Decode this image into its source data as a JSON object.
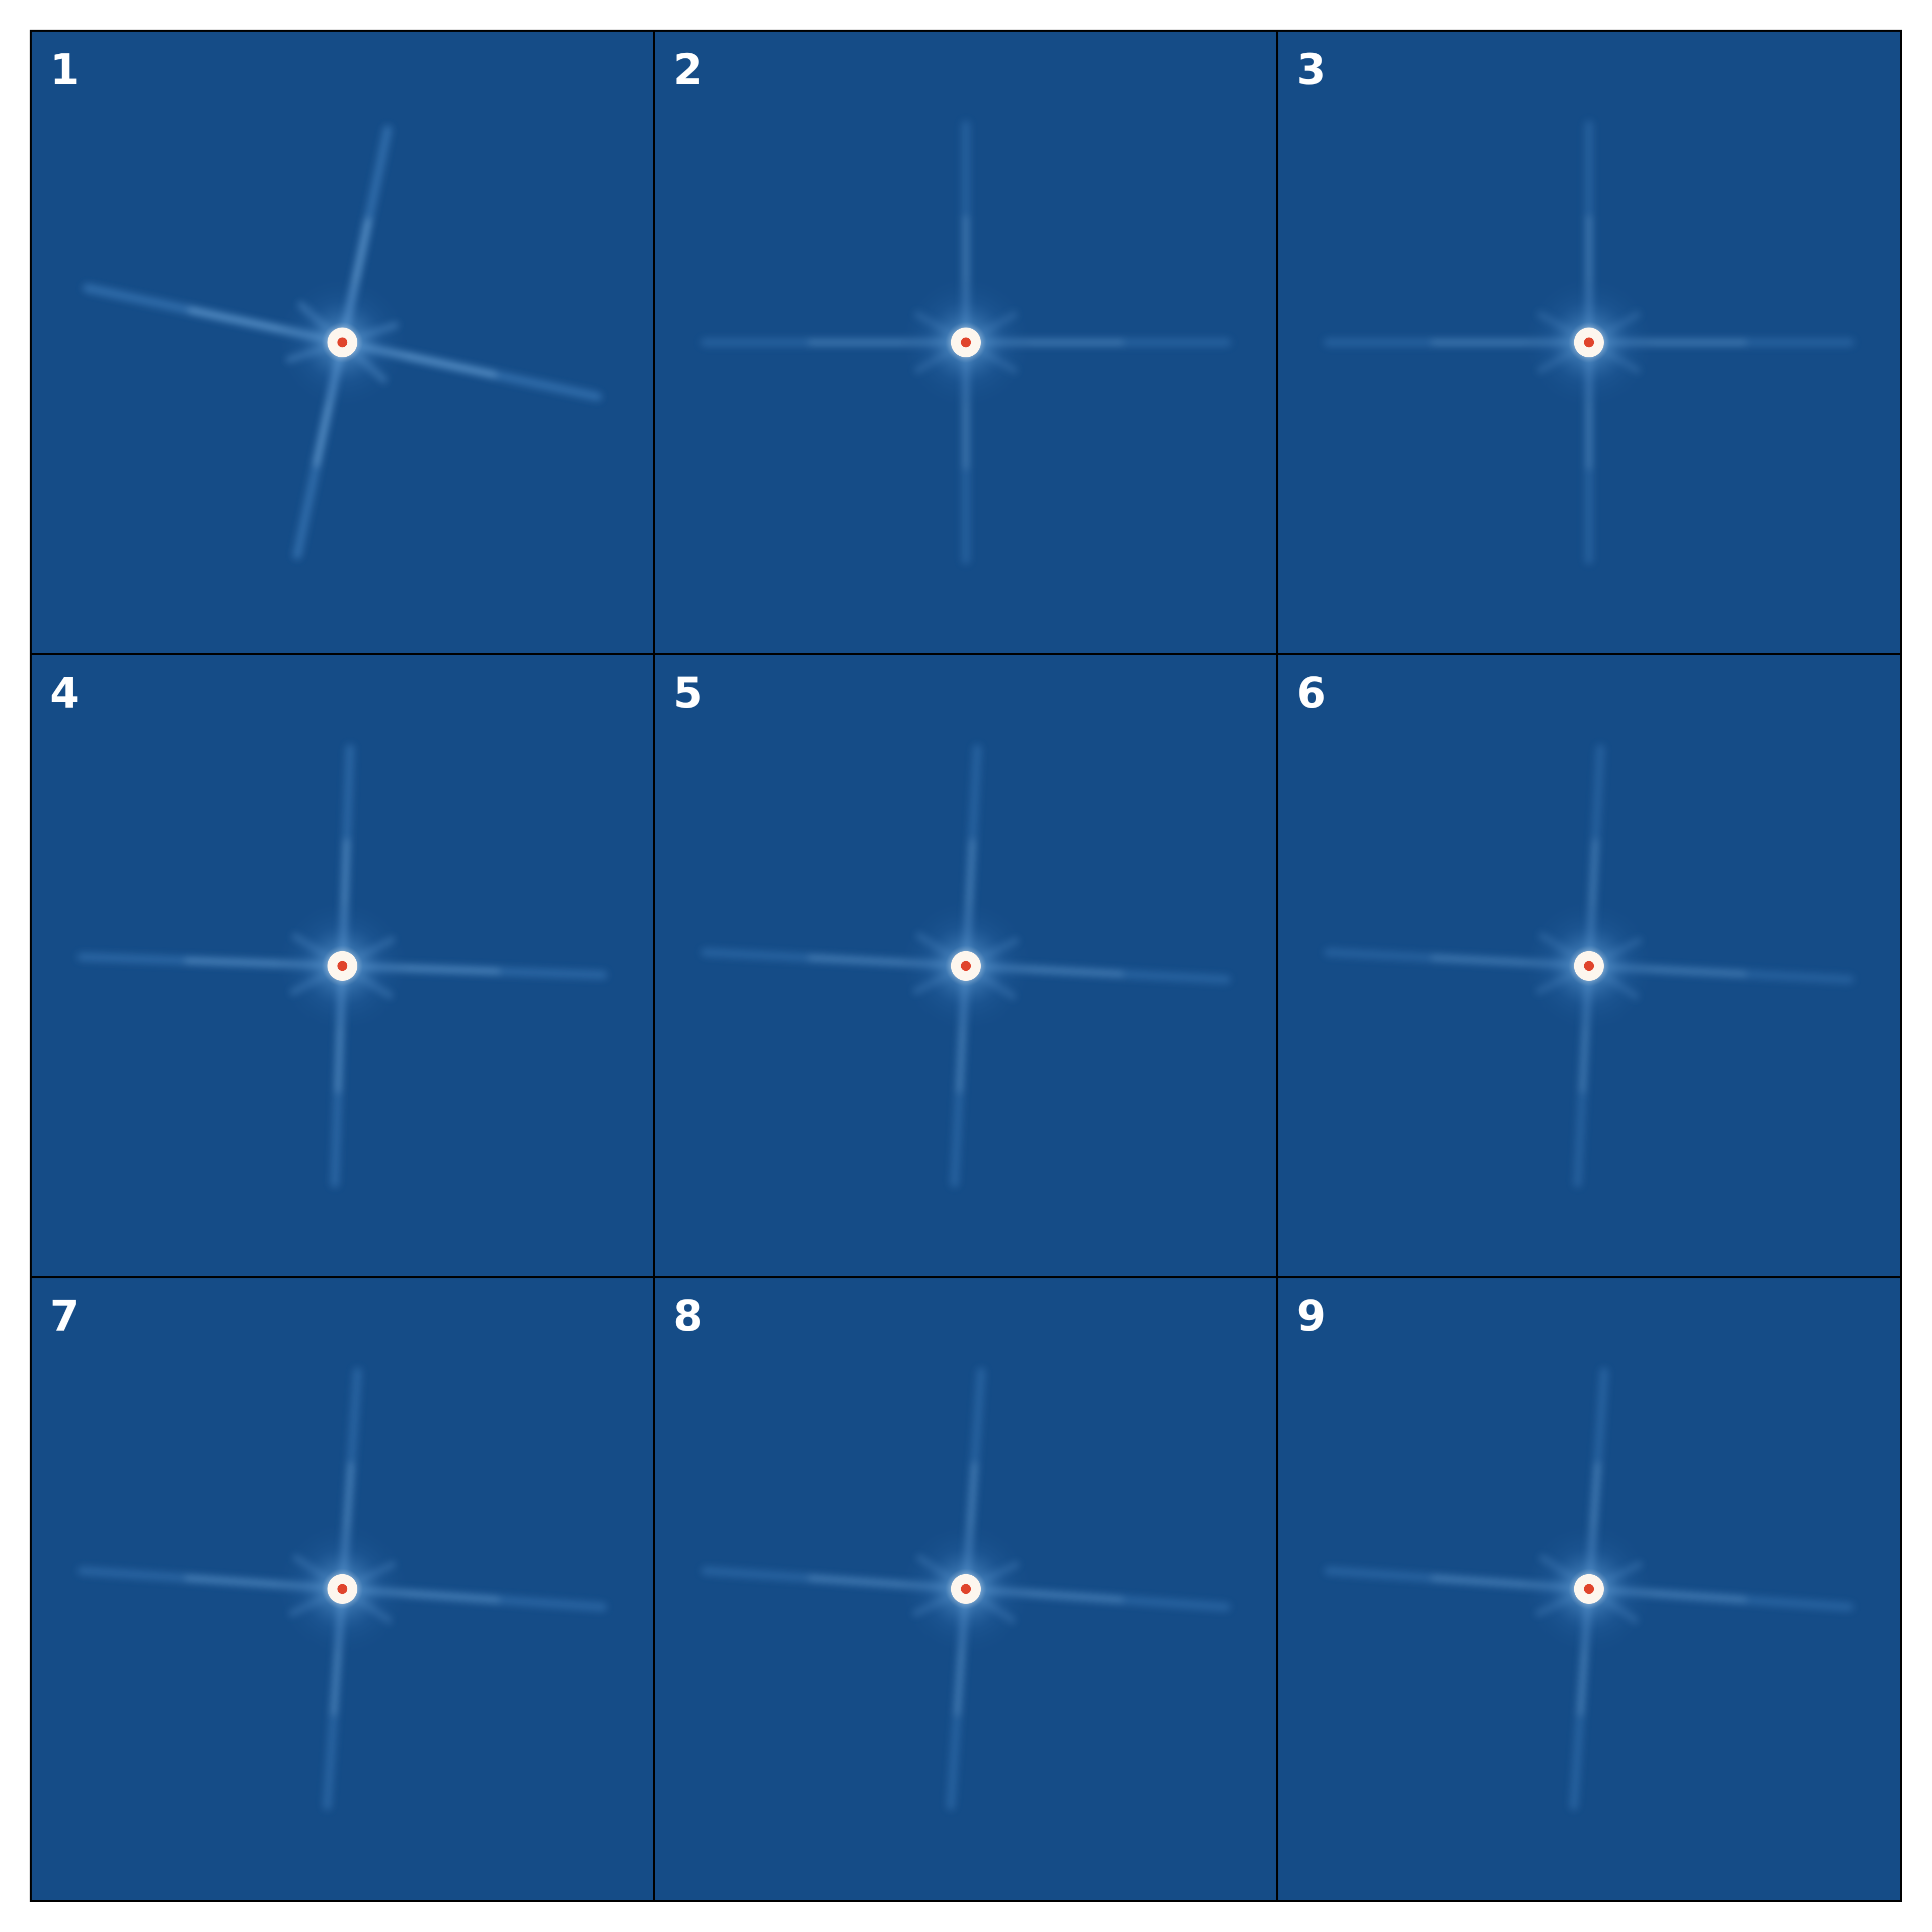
{
  "figure": {
    "background": "#154c87",
    "label_color": "#ffffff",
    "panels": [
      {
        "label": "1",
        "spike_tilt_deg": 12,
        "spike_strength": 0.9
      },
      {
        "label": "2",
        "spike_tilt_deg": 0,
        "spike_strength": 0.55
      },
      {
        "label": "3",
        "spike_tilt_deg": 0,
        "spike_strength": 0.55
      },
      {
        "label": "4",
        "spike_tilt_deg": 2,
        "spike_strength": 0.7
      },
      {
        "label": "5",
        "spike_tilt_deg": 3,
        "spike_strength": 0.6
      },
      {
        "label": "6",
        "spike_tilt_deg": 3,
        "spike_strength": 0.55
      },
      {
        "label": "7",
        "spike_tilt_deg": 4,
        "spike_strength": 0.65
      },
      {
        "label": "8",
        "spike_tilt_deg": 4,
        "spike_strength": 0.6
      },
      {
        "label": "9",
        "spike_tilt_deg": 4,
        "spike_strength": 0.6
      }
    ]
  }
}
